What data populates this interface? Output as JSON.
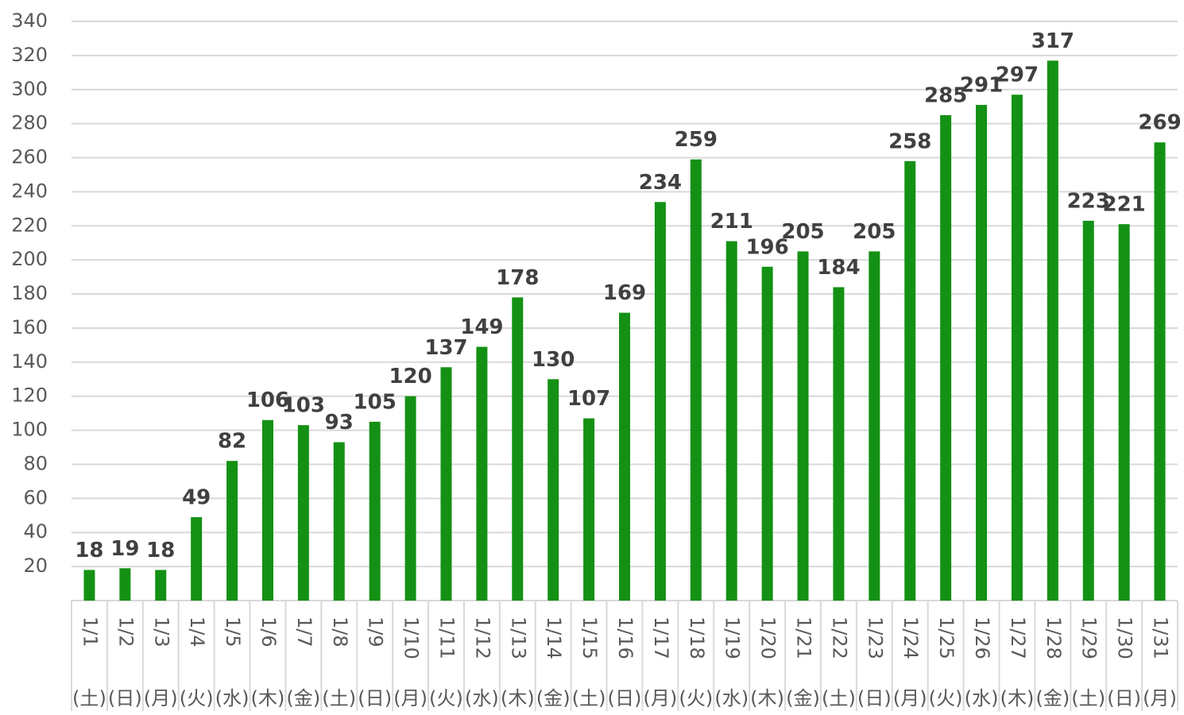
{
  "chart_data": {
    "type": "bar",
    "categories": [
      "1/1",
      "1/2",
      "1/3",
      "1/4",
      "1/5",
      "1/6",
      "1/7",
      "1/8",
      "1/9",
      "1/10",
      "1/11",
      "1/12",
      "1/13",
      "1/14",
      "1/15",
      "1/16",
      "1/17",
      "1/18",
      "1/19",
      "1/20",
      "1/21",
      "1/22",
      "1/23",
      "1/24",
      "1/25",
      "1/26",
      "1/27",
      "1/28",
      "1/29",
      "1/30",
      "1/31"
    ],
    "weekdays": [
      "(土)",
      "(日)",
      "(月)",
      "(火)",
      "(水)",
      "(木)",
      "(金)",
      "(土)",
      "(日)",
      "(月)",
      "(火)",
      "(水)",
      "(木)",
      "(金)",
      "(土)",
      "(日)",
      "(月)",
      "(火)",
      "(水)",
      "(木)",
      "(金)",
      "(土)",
      "(日)",
      "(月)",
      "(火)",
      "(水)",
      "(木)",
      "(金)",
      "(土)",
      "(日)",
      "(月)"
    ],
    "values": [
      18,
      19,
      18,
      49,
      82,
      106,
      103,
      93,
      105,
      120,
      137,
      149,
      178,
      130,
      107,
      169,
      234,
      259,
      211,
      196,
      205,
      184,
      205,
      258,
      285,
      291,
      297,
      317,
      223,
      221,
      269
    ],
    "color": "#149114",
    "ylim": [
      0,
      340
    ],
    "yticks": [
      20,
      40,
      60,
      80,
      100,
      120,
      140,
      160,
      180,
      200,
      220,
      240,
      260,
      280,
      300,
      320,
      340
    ],
    "grid": true
  }
}
